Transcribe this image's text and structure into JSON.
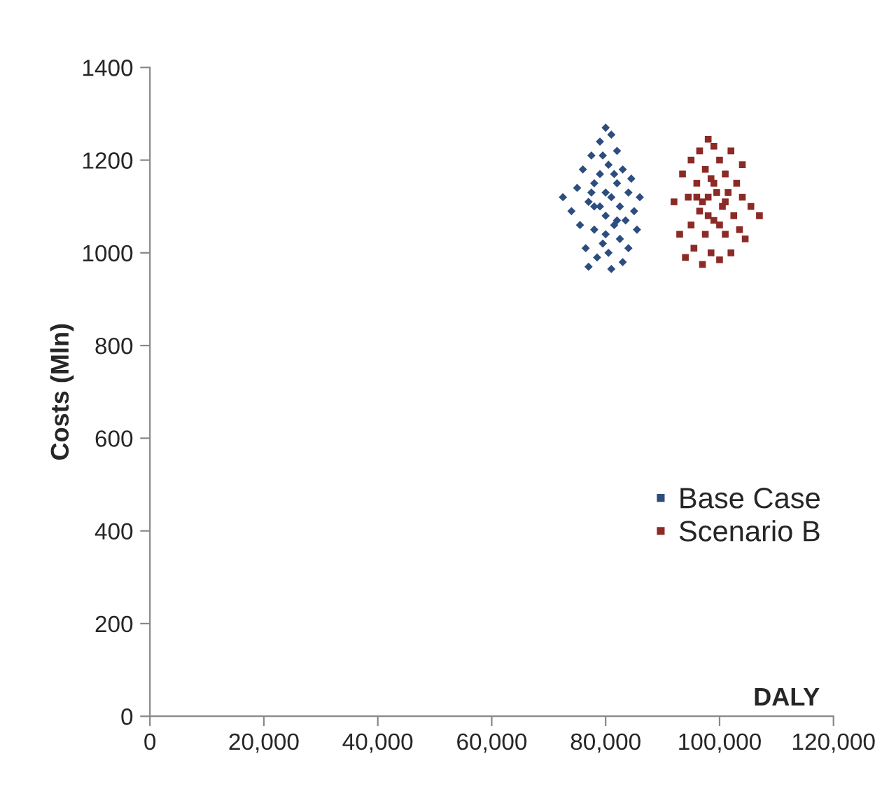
{
  "chart_data": {
    "type": "scatter",
    "xlabel": "DALY",
    "ylabel": "Costs (Mln)",
    "xlim": [
      0,
      120000
    ],
    "ylim": [
      0,
      1400
    ],
    "xticks": [
      0,
      {
        "value": 20000,
        "label": "20,000"
      },
      {
        "value": 40000,
        "label": "40,000"
      },
      {
        "value": 60000,
        "label": "60,000"
      },
      {
        "value": 80000,
        "label": "80,000"
      },
      {
        "value": 100000,
        "label": "100,000"
      },
      {
        "value": 120000,
        "label": "120,000"
      }
    ],
    "yticks": [
      0,
      200,
      400,
      600,
      800,
      1000,
      1200,
      1400
    ],
    "grid": false,
    "legend": "bottom right",
    "series": [
      {
        "name": "Base Case",
        "color": "#2c4d7e",
        "marker": "diamond",
        "x": [
          72500,
          74000,
          75000,
          75500,
          76000,
          76500,
          77000,
          77000,
          77500,
          78000,
          78000,
          78500,
          79000,
          79000,
          79500,
          80000,
          80000,
          80000,
          80500,
          80500,
          81000,
          81000,
          81000,
          81500,
          82000,
          82000,
          82500,
          82500,
          83000,
          83000,
          83500,
          84000,
          84000,
          84500,
          85000,
          85500,
          86000,
          79000,
          78000,
          80000,
          81500,
          77500,
          82000,
          79500
        ],
        "values": [
          1120,
          1090,
          1140,
          1060,
          1180,
          1010,
          1110,
          970,
          1210,
          1050,
          1150,
          990,
          1240,
          1100,
          1020,
          1270,
          1130,
          1080,
          1190,
          1000,
          1255,
          1120,
          965,
          1060,
          1220,
          1150,
          1030,
          1100,
          1180,
          980,
          1070,
          1130,
          1010,
          1160,
          1090,
          1050,
          1120,
          1170,
          1100,
          1040,
          1170,
          1130,
          1070,
          1210
        ]
      },
      {
        "name": "Scenario B",
        "color": "#8b2a26",
        "marker": "square",
        "x": [
          92000,
          93000,
          93500,
          94000,
          94500,
          95000,
          95000,
          95500,
          96000,
          96500,
          96500,
          97000,
          97500,
          97500,
          98000,
          98000,
          98500,
          98500,
          99000,
          99000,
          99500,
          100000,
          100000,
          100500,
          101000,
          101000,
          101500,
          102000,
          102000,
          102500,
          103000,
          103500,
          104000,
          104000,
          104500,
          105500,
          107000,
          97000,
          99000,
          100000,
          96000,
          101000,
          98000
        ],
        "values": [
          1110,
          1040,
          1170,
          990,
          1120,
          1200,
          1060,
          1010,
          1150,
          1220,
          1090,
          975,
          1180,
          1040,
          1245,
          1120,
          1000,
          1160,
          1230,
          1070,
          1130,
          1200,
          985,
          1100,
          1170,
          1040,
          1130,
          1220,
          1000,
          1080,
          1150,
          1050,
          1190,
          1120,
          1030,
          1100,
          1080,
          1110,
          1150,
          1060,
          1120,
          1110,
          1080
        ]
      }
    ]
  }
}
